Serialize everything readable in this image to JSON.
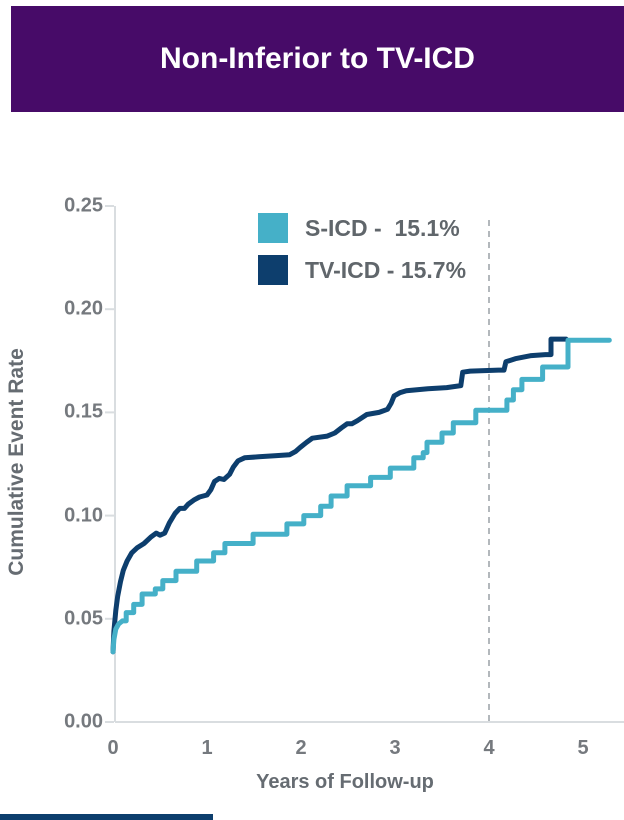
{
  "header": {
    "title": "Non-Inferior to TV-ICD",
    "bg_color": "#470b68",
    "text_color": "#ffffff"
  },
  "chart_data": {
    "type": "line",
    "subtype": "kaplan-meier-cumulative-incidence",
    "xlabel": "Years of Follow-up",
    "ylabel": "Cumulative Event Rate",
    "xlim": [
      0,
      5.42
    ],
    "ylim": [
      0,
      0.25
    ],
    "grid": false,
    "legend_position": "top-center-inside",
    "xticks": [
      {
        "label": "0",
        "value": 0
      },
      {
        "label": "1",
        "value": 1
      },
      {
        "label": "2",
        "value": 2
      },
      {
        "label": "3",
        "value": 3
      },
      {
        "label": "4",
        "value": 4
      },
      {
        "label": "5",
        "value": 5
      }
    ],
    "yticks": [
      {
        "label": "0.00",
        "value": 0.0
      },
      {
        "label": "0.05",
        "value": 0.05
      },
      {
        "label": "0.10",
        "value": 0.1
      },
      {
        "label": "0.15",
        "value": 0.15
      },
      {
        "label": "0.20",
        "value": 0.2
      },
      {
        "label": "0.25",
        "value": 0.25
      }
    ],
    "reference_line": {
      "x": 4,
      "style": "dashed",
      "color": "#9aa0a5",
      "top_value": 0.2432
    },
    "axis_color": "#d9dde0",
    "series": [
      {
        "name": "S-ICD",
        "label": "S-ICD -  15.1%",
        "rate_shown": "15.1%",
        "color": "#45b0c8",
        "points": [
          [
            0.0,
            0.034
          ],
          [
            0.01,
            0.04
          ],
          [
            0.03,
            0.045
          ],
          [
            0.06,
            0.0475
          ],
          [
            0.1,
            0.049
          ],
          [
            0.14,
            0.049
          ],
          [
            0.14,
            0.053
          ],
          [
            0.22,
            0.053
          ],
          [
            0.22,
            0.057
          ],
          [
            0.31,
            0.057
          ],
          [
            0.31,
            0.062
          ],
          [
            0.45,
            0.062
          ],
          [
            0.45,
            0.0645
          ],
          [
            0.53,
            0.0645
          ],
          [
            0.53,
            0.0685
          ],
          [
            0.67,
            0.0685
          ],
          [
            0.67,
            0.073
          ],
          [
            0.89,
            0.073
          ],
          [
            0.89,
            0.078
          ],
          [
            1.07,
            0.078
          ],
          [
            1.07,
            0.082
          ],
          [
            1.19,
            0.082
          ],
          [
            1.19,
            0.0865
          ],
          [
            1.49,
            0.0865
          ],
          [
            1.49,
            0.091
          ],
          [
            1.85,
            0.091
          ],
          [
            1.85,
            0.096
          ],
          [
            2.03,
            0.096
          ],
          [
            2.03,
            0.1
          ],
          [
            2.21,
            0.1
          ],
          [
            2.21,
            0.1045
          ],
          [
            2.32,
            0.1045
          ],
          [
            2.32,
            0.1095
          ],
          [
            2.49,
            0.1095
          ],
          [
            2.49,
            0.1145
          ],
          [
            2.74,
            0.1145
          ],
          [
            2.74,
            0.1185
          ],
          [
            2.95,
            0.1185
          ],
          [
            2.95,
            0.123
          ],
          [
            3.2,
            0.123
          ],
          [
            3.2,
            0.128
          ],
          [
            3.3,
            0.128
          ],
          [
            3.3,
            0.1305
          ],
          [
            3.34,
            0.1305
          ],
          [
            3.34,
            0.1355
          ],
          [
            3.5,
            0.1355
          ],
          [
            3.5,
            0.14
          ],
          [
            3.62,
            0.14
          ],
          [
            3.62,
            0.145
          ],
          [
            3.86,
            0.145
          ],
          [
            3.86,
            0.151
          ],
          [
            4.19,
            0.151
          ],
          [
            4.19,
            0.156
          ],
          [
            4.26,
            0.156
          ],
          [
            4.26,
            0.161
          ],
          [
            4.35,
            0.161
          ],
          [
            4.35,
            0.166
          ],
          [
            4.57,
            0.166
          ],
          [
            4.57,
            0.172
          ],
          [
            4.84,
            0.172
          ],
          [
            4.84,
            0.185
          ],
          [
            5.28,
            0.185
          ]
        ]
      },
      {
        "name": "TV-ICD",
        "label": "TV-ICD - 15.7%",
        "rate_shown": "15.7%",
        "color": "#0d3e6d",
        "points": [
          [
            0.0,
            0.034
          ],
          [
            0.01,
            0.044
          ],
          [
            0.03,
            0.054
          ],
          [
            0.05,
            0.061
          ],
          [
            0.08,
            0.068
          ],
          [
            0.11,
            0.0735
          ],
          [
            0.15,
            0.078
          ],
          [
            0.2,
            0.082
          ],
          [
            0.26,
            0.0845
          ],
          [
            0.33,
            0.0865
          ],
          [
            0.4,
            0.0895
          ],
          [
            0.46,
            0.0915
          ],
          [
            0.5,
            0.0905
          ],
          [
            0.55,
            0.0915
          ],
          [
            0.6,
            0.0965
          ],
          [
            0.66,
            0.101
          ],
          [
            0.71,
            0.1035
          ],
          [
            0.76,
            0.1035
          ],
          [
            0.8,
            0.1055
          ],
          [
            0.86,
            0.1075
          ],
          [
            0.92,
            0.109
          ],
          [
            1.0,
            0.11
          ],
          [
            1.04,
            0.1125
          ],
          [
            1.08,
            0.1165
          ],
          [
            1.13,
            0.118
          ],
          [
            1.18,
            0.1175
          ],
          [
            1.24,
            0.12
          ],
          [
            1.28,
            0.1235
          ],
          [
            1.33,
            0.1265
          ],
          [
            1.4,
            0.128
          ],
          [
            1.55,
            0.1285
          ],
          [
            1.72,
            0.129
          ],
          [
            1.88,
            0.1295
          ],
          [
            1.94,
            0.131
          ],
          [
            1.99,
            0.133
          ],
          [
            2.06,
            0.1355
          ],
          [
            2.12,
            0.1375
          ],
          [
            2.28,
            0.1385
          ],
          [
            2.36,
            0.14
          ],
          [
            2.43,
            0.1425
          ],
          [
            2.49,
            0.1445
          ],
          [
            2.54,
            0.1445
          ],
          [
            2.6,
            0.146
          ],
          [
            2.7,
            0.149
          ],
          [
            2.83,
            0.15
          ],
          [
            2.92,
            0.1515
          ],
          [
            2.96,
            0.1545
          ],
          [
            2.99,
            0.158
          ],
          [
            3.05,
            0.1595
          ],
          [
            3.12,
            0.1605
          ],
          [
            3.35,
            0.1615
          ],
          [
            3.55,
            0.162
          ],
          [
            3.7,
            0.163
          ],
          [
            3.72,
            0.1695
          ],
          [
            3.8,
            0.17
          ],
          [
            4.1,
            0.1705
          ],
          [
            4.16,
            0.1705
          ],
          [
            4.18,
            0.1745
          ],
          [
            4.28,
            0.176
          ],
          [
            4.45,
            0.1775
          ],
          [
            4.6,
            0.178
          ],
          [
            4.66,
            0.178
          ],
          [
            4.66,
            0.1855
          ],
          [
            4.82,
            0.1855
          ]
        ]
      }
    ]
  },
  "footer": {
    "accent_bar_color": "#0d3e6d"
  }
}
